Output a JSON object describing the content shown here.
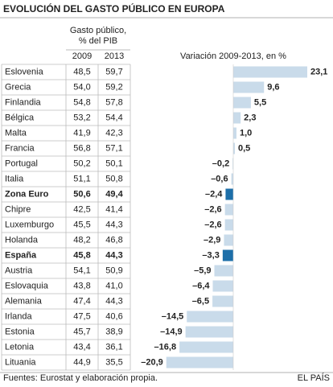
{
  "chart_data": {
    "type": "bar",
    "orientation": "horizontal",
    "title": "EVOLUCIÓN DEL GASTO PÚBLICO EN EUROPA",
    "table_header": "Gasto público, % del PIB",
    "bar_header": "Variación 2009-2013, en %",
    "categories": [
      "Eslovenia",
      "Grecia",
      "Finlandia",
      "Bélgica",
      "Malta",
      "Francia",
      "Portugal",
      "Italia",
      "Zona Euro",
      "Chipre",
      "Luxemburgo",
      "Holanda",
      "España",
      "Austria",
      "Eslovaquia",
      "Alemania",
      "Irlanda",
      "Estonia",
      "Letonia",
      "Lituania"
    ],
    "columns": [
      {
        "name": "2009",
        "values": [
          48.5,
          54.0,
          54.8,
          53.2,
          41.9,
          56.8,
          50.2,
          51.1,
          50.6,
          42.5,
          45.5,
          48.2,
          45.8,
          54.1,
          43.8,
          47.4,
          47.5,
          45.7,
          43.4,
          44.9
        ],
        "value_labels": [
          "48,5",
          "54,0",
          "54,8",
          "53,2",
          "41,9",
          "56,8",
          "50,2",
          "51,1",
          "50,6",
          "42,5",
          "45,5",
          "48,2",
          "45,8",
          "54,1",
          "43,8",
          "47,4",
          "47,5",
          "45,7",
          "43,4",
          "44,9"
        ]
      },
      {
        "name": "2013",
        "values": [
          59.7,
          59.2,
          57.8,
          54.4,
          42.3,
          57.1,
          50.1,
          50.8,
          49.4,
          41.4,
          44.3,
          46.8,
          44.3,
          50.9,
          41.0,
          44.3,
          40.6,
          38.9,
          36.1,
          35.5
        ],
        "value_labels": [
          "59,7",
          "59,2",
          "57,8",
          "54,4",
          "42,3",
          "57,1",
          "50,1",
          "50,8",
          "49,4",
          "41,4",
          "44,3",
          "46,8",
          "44,3",
          "50,9",
          "41,0",
          "44,3",
          "40,6",
          "38,9",
          "36,1",
          "35,5"
        ]
      }
    ],
    "values": [
      23.1,
      9.6,
      5.5,
      2.3,
      1.0,
      0.5,
      -0.2,
      -0.6,
      -2.4,
      -2.6,
      -2.6,
      -2.9,
      -3.3,
      -5.9,
      -6.4,
      -6.5,
      -14.5,
      -14.9,
      -16.8,
      -20.9
    ],
    "value_labels": [
      "23,1",
      "9,6",
      "5,5",
      "2,3",
      "1,0",
      "0,5",
      "–0,2",
      "–0,6",
      "–2,4",
      "–2,6",
      "–2,6",
      "–2,9",
      "–3,3",
      "–5,9",
      "–6,4",
      "–6,5",
      "–14,5",
      "–14,9",
      "–16,8",
      "–20,9"
    ],
    "color": "#c9dbea",
    "highlight_color": "#1d6fa9",
    "highlight": [
      "Zona Euro",
      "España"
    ],
    "source": "Fuentes: Eurostat y elaboración propia.",
    "credit": "EL PAÍS"
  }
}
